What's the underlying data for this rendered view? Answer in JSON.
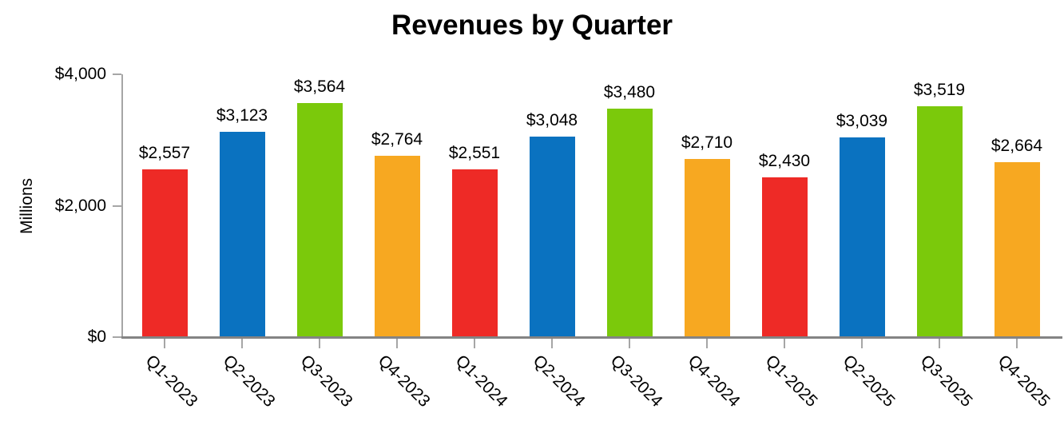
{
  "page": {
    "background": "#FFFFFF"
  },
  "chart_data": {
    "type": "bar",
    "title": "Revenues by Quarter",
    "xlabel": "",
    "ylabel": "Millions",
    "ylim": [
      0,
      4000
    ],
    "grid": false,
    "legend": null,
    "categories": [
      "Q1-2023",
      "Q2-2023",
      "Q3-2023",
      "Q4-2023",
      "Q1-2024",
      "Q2-2024",
      "Q3-2024",
      "Q4-2024",
      "Q1-2025",
      "Q2-2025",
      "Q3-2025",
      "Q4-2025"
    ],
    "values": [
      2557,
      3123,
      3564,
      2764,
      2551,
      3048,
      3480,
      2710,
      2430,
      3039,
      3519,
      2664
    ],
    "value_labels": [
      "$2,557",
      "$3,123",
      "$3,564",
      "$2,764",
      "$2,551",
      "$3,048",
      "$3,480",
      "$2,710",
      "$2,430",
      "$3,039",
      "$3,519",
      "$2,664"
    ],
    "y_ticks": [
      {
        "value": 0,
        "label": "$0"
      },
      {
        "value": 2000,
        "label": "$2,000"
      },
      {
        "value": 4000,
        "label": "$4,000"
      }
    ],
    "bar_color_cycle": [
      "#EE2A26",
      "#0A72C0",
      "#7BC90B",
      "#F7A821"
    ],
    "axis_color": "#A6A6A6",
    "baseline_color": "#848484",
    "text_color": "#000000"
  }
}
